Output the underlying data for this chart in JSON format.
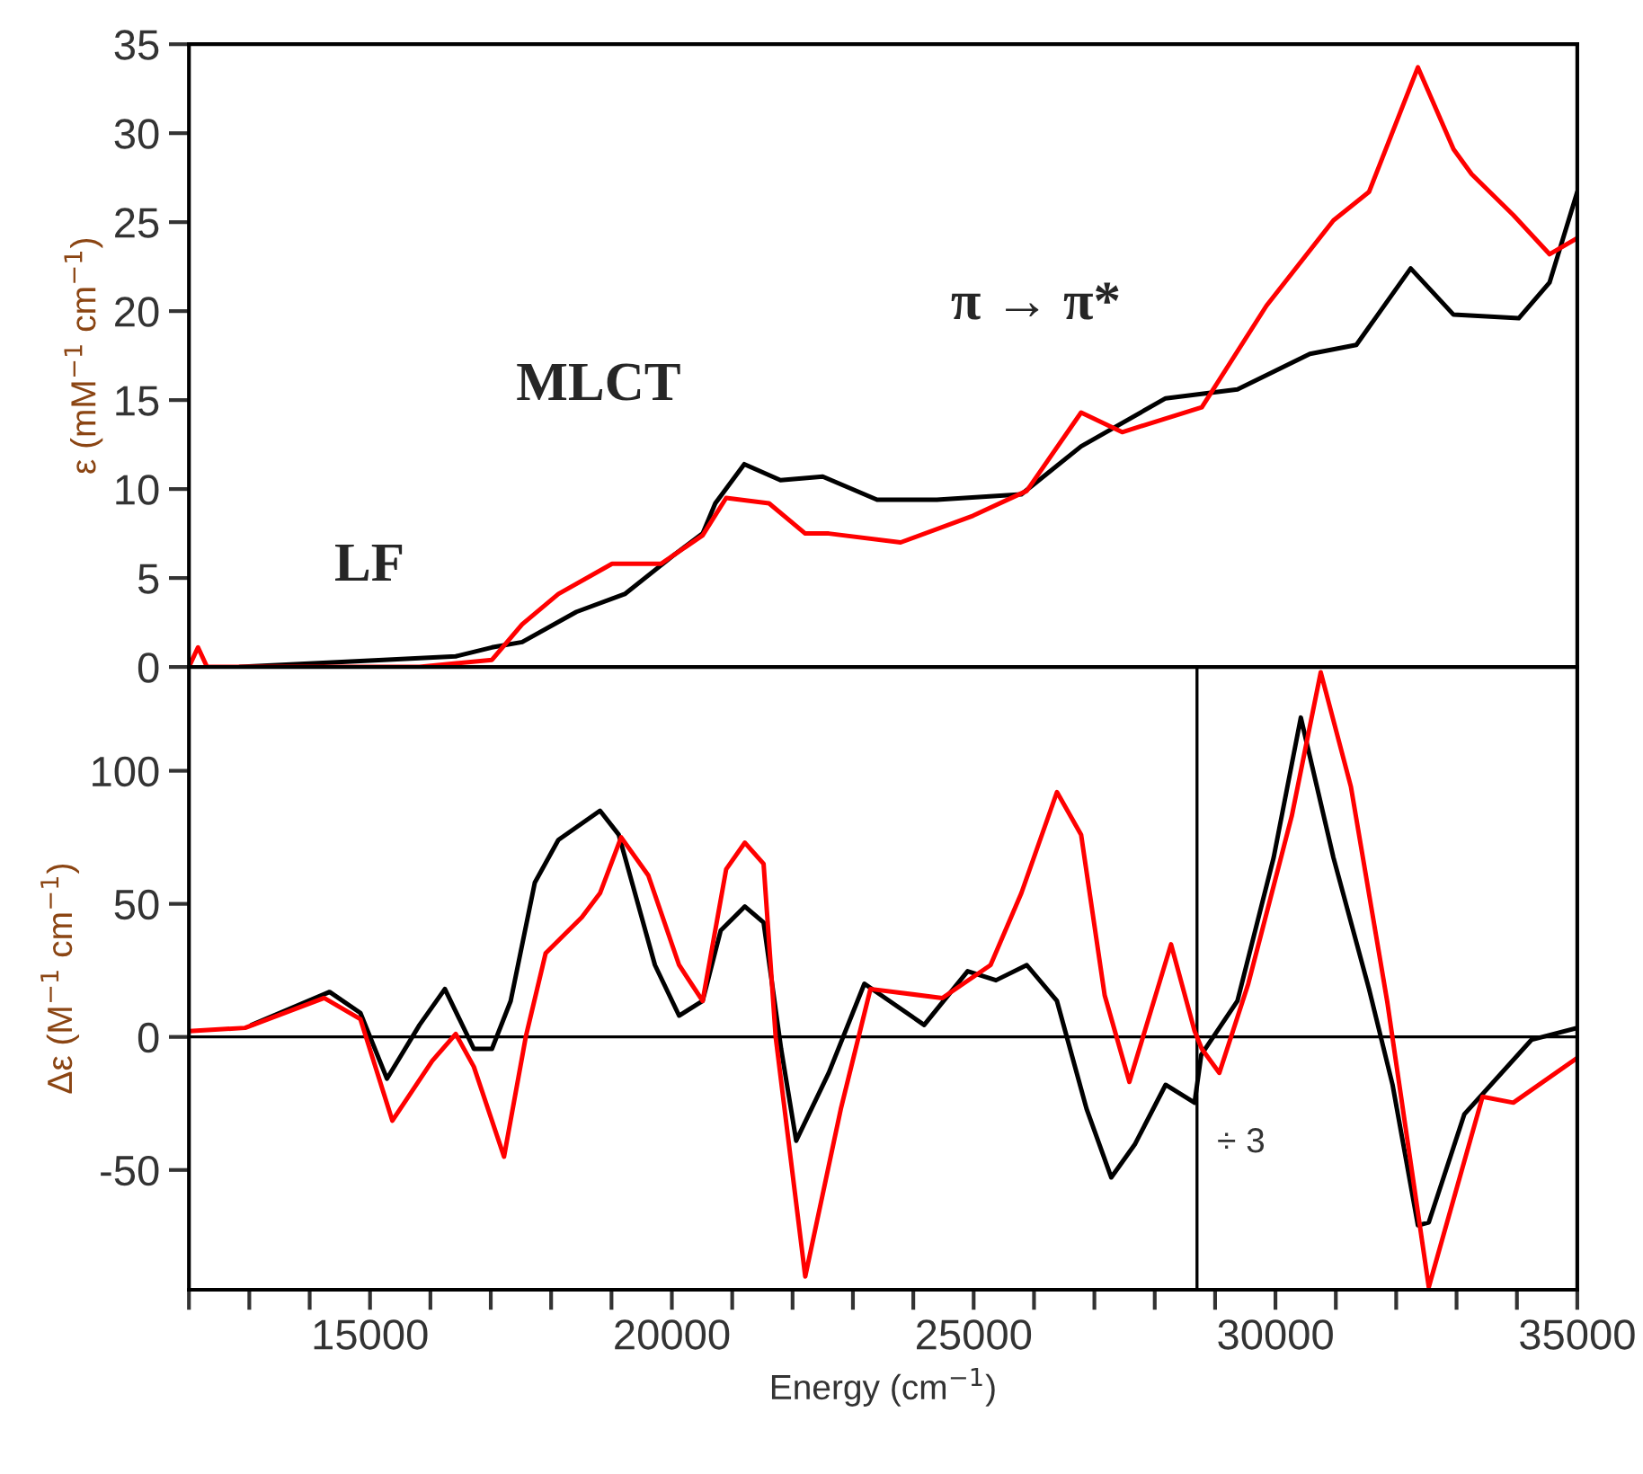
{
  "chart_data": [
    {
      "type": "line",
      "ylabel": "ε (mM$^{−1}$ cm$^{−1}$)",
      "xlim": [
        12000,
        35000
      ],
      "ylim": [
        0,
        35
      ],
      "yticks": [
        0,
        5,
        10,
        15,
        20,
        25,
        30,
        35
      ],
      "tick_labels": "y",
      "grid": false,
      "legend": false,
      "annotations": [
        "LF",
        "MLCT",
        "π → π*"
      ],
      "series": [
        {
          "color": "#000000",
          "x": [
            12840,
            15220,
            16420,
            17020,
            17520,
            18420,
            19220,
            20000,
            20510,
            20720,
            21200,
            21800,
            22500,
            23400,
            24390,
            25790,
            26780,
            28180,
            29370,
            30570,
            31340,
            32240,
            32950,
            34030,
            34540,
            35000
          ],
          "values": [
            0,
            0.4,
            0.6,
            1.1,
            1.4,
            3.1,
            4.1,
            6.2,
            7.5,
            9.2,
            11.4,
            10.5,
            10.7,
            9.4,
            9.4,
            9.7,
            12.4,
            15.1,
            15.6,
            17.6,
            18.1,
            22.4,
            19.8,
            19.6,
            21.6,
            26.7
          ]
        },
        {
          "color": "#ff0000",
          "x": [
            12000,
            12150,
            12300,
            15820,
            17020,
            17520,
            18120,
            19010,
            19820,
            20510,
            20900,
            21610,
            22210,
            22600,
            23790,
            24990,
            25880,
            26780,
            27460,
            28780,
            29850,
            30960,
            31550,
            32360,
            32950,
            33250,
            33940,
            34540,
            35000
          ],
          "values": [
            0,
            1.1,
            0,
            0,
            0.4,
            2.4,
            4.1,
            5.8,
            5.8,
            7.4,
            9.5,
            9.2,
            7.5,
            7.5,
            7.0,
            8.5,
            9.9,
            14.3,
            13.2,
            14.6,
            20.3,
            25.1,
            26.7,
            33.7,
            29.1,
            27.7,
            25.4,
            23.2,
            24.1
          ]
        }
      ]
    },
    {
      "type": "line",
      "xlabel": "Energy (cm$^{−1}$)",
      "ylabel": "Δε (M$^{−1}$ cm$^{−1}$)",
      "xlim": [
        12000,
        35000
      ],
      "ylim": [
        -95,
        139
      ],
      "yticks": [
        -50,
        0,
        50,
        100
      ],
      "grid": false,
      "legend": false,
      "xticks": [
        {
          "value": 12000,
          "label": null
        },
        {
          "value": 13000,
          "label": null
        },
        {
          "value": 14000,
          "label": null
        },
        15000,
        {
          "value": 16000,
          "label": null
        },
        {
          "value": 17000,
          "label": null
        },
        {
          "value": 18000,
          "label": null
        },
        {
          "value": 19000,
          "label": null
        },
        20000,
        {
          "value": 21000,
          "label": null
        },
        {
          "value": 22000,
          "label": null
        },
        {
          "value": 23000,
          "label": null
        },
        {
          "value": 24000,
          "label": null
        },
        25000,
        {
          "value": 26000,
          "label": null
        },
        {
          "value": 27000,
          "label": null
        },
        {
          "value": 28000,
          "label": null
        },
        {
          "value": 29000,
          "label": null
        },
        30000,
        {
          "value": 31000,
          "label": null
        },
        {
          "value": 32000,
          "label": null
        },
        {
          "value": 33000,
          "label": null
        },
        {
          "value": 34000,
          "label": null
        },
        35000
      ],
      "ref_lines": [
        {
          "axis": "y",
          "value": 0,
          "label": null,
          "color": "#000000"
        },
        {
          "axis": "x",
          "value": 28700,
          "label": "÷ 3",
          "color": "#000000"
        }
      ],
      "series": [
        {
          "color": "#000000",
          "x": [
            13040,
            14330,
            14840,
            15280,
            15820,
            16240,
            16720,
            17020,
            17330,
            17730,
            18120,
            18810,
            19120,
            19720,
            20120,
            20510,
            20810,
            21210,
            21520,
            21810,
            22060,
            22600,
            23190,
            24180,
            24900,
            25370,
            25880,
            26380,
            26870,
            27280,
            27670,
            28180,
            28660,
            28770,
            29370,
            29970,
            30420,
            30960,
            31550,
            31940,
            32360,
            32540,
            33130,
            34240,
            35000
          ],
          "values": [
            4.5,
            16.9,
            9,
            -15.7,
            4.5,
            18,
            -4.5,
            -4.5,
            13.5,
            58,
            74,
            85,
            76,
            27,
            8,
            13.5,
            40,
            49,
            43,
            -4.5,
            -39,
            -13.5,
            20,
            4.5,
            24.7,
            21.3,
            27,
            13.5,
            -27,
            -52.8,
            -40.4,
            -18,
            -24.7,
            -6.7,
            13.5,
            67.4,
            120,
            67.4,
            18,
            -18,
            -70.8,
            -69.7,
            -29,
            -1.1,
            3.4
          ]
        },
        {
          "color": "#ff0000",
          "x": [
            12000,
            12930,
            14240,
            14840,
            15370,
            16030,
            16420,
            16720,
            17220,
            17580,
            17910,
            18510,
            18810,
            19160,
            19610,
            20120,
            20510,
            20900,
            21210,
            21520,
            21720,
            22210,
            22800,
            23290,
            24480,
            25280,
            25790,
            26380,
            26780,
            27170,
            27580,
            28270,
            28660,
            28780,
            29070,
            29550,
            30270,
            30750,
            31250,
            31850,
            32540,
            33430,
            33940,
            35000
          ],
          "values": [
            2.2,
            3.4,
            14.6,
            6.7,
            -31.5,
            -9,
            1.1,
            -11.2,
            -45,
            0,
            31.5,
            45,
            54,
            75,
            60.7,
            27,
            13.5,
            63,
            73,
            65,
            0,
            -90,
            -27,
            18,
            14.6,
            27,
            54,
            92,
            76,
            15.7,
            -16.9,
            34.8,
            2.2,
            -4.5,
            -13.5,
            20,
            83,
            137,
            94,
            13.5,
            -94,
            -22.5,
            -24.7,
            -7.9
          ]
        }
      ]
    }
  ]
}
